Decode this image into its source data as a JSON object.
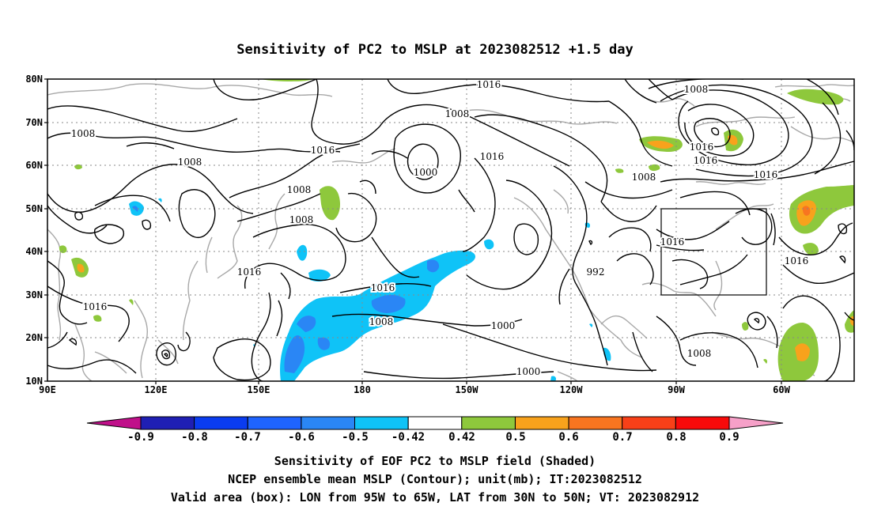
{
  "title": "Sensitivity of PC2 to MSLP at 2023082512 +1.5 day",
  "axes": {
    "lat_labels": [
      "80N",
      "70N",
      "60N",
      "50N",
      "40N",
      "30N",
      "20N",
      "10N"
    ],
    "lon_labels": [
      "90E",
      "120E",
      "150E",
      "180",
      "150W",
      "120W",
      "90W",
      "60W"
    ]
  },
  "colorbar": {
    "tick_labels": [
      "-0.9",
      "-0.8",
      "-0.7",
      "-0.6",
      "-0.5",
      "-0.42",
      "0.42",
      "0.5",
      "0.6",
      "0.7",
      "0.8",
      "0.9"
    ],
    "colors": [
      "#1f1fb4",
      "#0a3cf0",
      "#1e64ff",
      "#2a86f5",
      "#0fc3f7",
      "#ffffff",
      "#8ec83c",
      "#f8a21c",
      "#f87520",
      "#f84018",
      "#f80a0a"
    ],
    "below_color": "#c0108a",
    "above_color": "#f6a0c8"
  },
  "contours": {
    "unit": "mb",
    "levels": [
      992,
      1000,
      1008,
      1016
    ],
    "labels": [
      "1016",
      "1008",
      "1008",
      "1016",
      "1008",
      "1008",
      "1016",
      "1016",
      "1000",
      "1016",
      "1008",
      "1016",
      "1016",
      "1016",
      "1008",
      "1000",
      "1000",
      "992",
      "1008",
      "1016",
      "1016",
      "1016",
      "1008",
      "1008",
      "1008"
    ]
  },
  "valid_box": {
    "lon_from": "95W",
    "lon_to": "65W",
    "lat_from": "30N",
    "lat_to": "50N"
  },
  "captions": [
    "Sensitivity of EOF PC2 to MSLP field (Shaded)",
    "NCEP ensemble mean MSLP (Contour); unit(mb); IT:2023082512",
    "Valid area (box): LON from 95W to 65W, LAT from 30N to 50N; VT: 2023082912"
  ]
}
